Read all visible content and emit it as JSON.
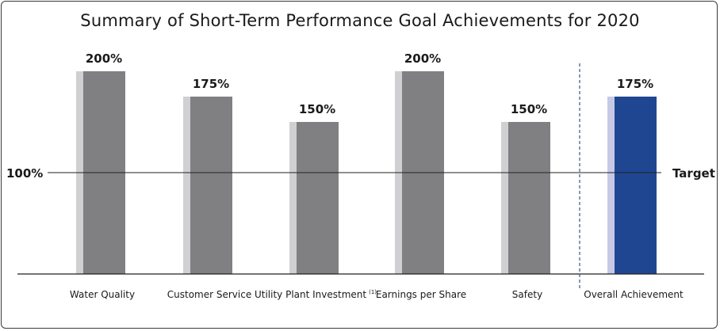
{
  "chart_data": {
    "type": "bar",
    "title": "Summary of Short-Term Performance Goal Achievements for 2020",
    "categories": [
      "Water Quality",
      "Customer Service",
      "Utility Plant Investment",
      "Earnings per Share",
      "Safety",
      "Overall Achievement"
    ],
    "category_superscripts": [
      "",
      "",
      "(1)",
      "",
      "",
      ""
    ],
    "values": [
      200,
      175,
      150,
      200,
      150,
      175
    ],
    "value_labels": [
      "200%",
      "175%",
      "150%",
      "200%",
      "150%",
      "175%"
    ],
    "ylim": [
      0,
      200
    ],
    "reference_line": {
      "value": 100,
      "left_label": "100%",
      "right_label": "Target"
    },
    "colors": {
      "bar": "#808083",
      "bar_shadow": "#d0d0d3",
      "highlight_bar": "#1f4690",
      "highlight_shadow": "#c7c9e6",
      "axis": "#222222",
      "divider": "#2e5a86"
    },
    "highlight_index": 5,
    "grid": false,
    "legend": "none"
  }
}
